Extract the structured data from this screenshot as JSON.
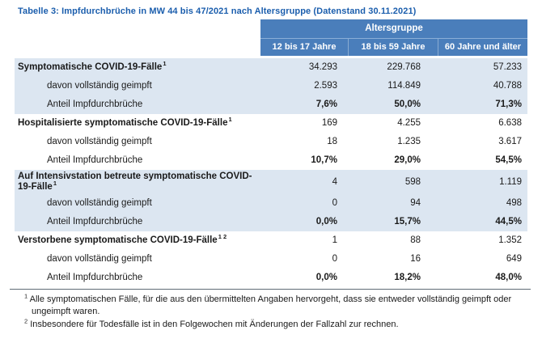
{
  "title": "Tabelle 3: Impfdurchbrüche in MW 44 bis 47/2021 nach Altersgruppe (Datenstand 30.11.2021)",
  "table": {
    "header": {
      "group_label": "Altersgruppe",
      "columns": [
        "12 bis 17 Jahre",
        "18 bis 59 Jahre",
        "60 Jahre und älter"
      ]
    },
    "groups": [
      {
        "label": "Symptomatische COVID-19-Fälle",
        "sup": "1",
        "cases": [
          "34.293",
          "229.768",
          "57.233"
        ],
        "vaccinated_label": "davon vollständig geimpft",
        "vaccinated": [
          "2.593",
          "114.849",
          "40.788"
        ],
        "share_label": "Anteil Impfdurchbrüche",
        "share": [
          "7,6%",
          "50,0%",
          "71,3%"
        ]
      },
      {
        "label": "Hospitalisierte symptomatische COVID-19-Fälle",
        "sup": "1",
        "cases": [
          "169",
          "4.255",
          "6.638"
        ],
        "vaccinated_label": "davon vollständig geimpft",
        "vaccinated": [
          "18",
          "1.235",
          "3.617"
        ],
        "share_label": "Anteil Impfdurchbrüche",
        "share": [
          "10,7%",
          "29,0%",
          "54,5%"
        ]
      },
      {
        "label": "Auf Intensivstation betreute symptomatische COVID-19-Fälle",
        "sup": "1",
        "cases": [
          "4",
          "598",
          "1.119"
        ],
        "vaccinated_label": "davon vollständig geimpft",
        "vaccinated": [
          "0",
          "94",
          "498"
        ],
        "share_label": "Anteil Impfdurchbrüche",
        "share": [
          "0,0%",
          "15,7%",
          "44,5%"
        ]
      },
      {
        "label": "Verstorbene symptomatische COVID-19-Fälle",
        "sup": "1 2",
        "cases": [
          "1",
          "88",
          "1.352"
        ],
        "vaccinated_label": "davon vollständig geimpft",
        "vaccinated": [
          "0",
          "16",
          "649"
        ],
        "share_label": "Anteil Impfdurchbrüche",
        "share": [
          "0,0%",
          "18,2%",
          "48,0%"
        ]
      }
    ]
  },
  "footnotes": [
    {
      "marker": "1",
      "text": "Alle symptomatischen Fälle, für die aus den übermittelten Angaben hervorgeht, dass sie entweder vollständig geimpft oder ungeimpft waren."
    },
    {
      "marker": "2",
      "text": "Insbesondere für Todesfälle ist in den Folgewochen mit Änderungen der Fallzahl zur rechnen."
    }
  ],
  "colors": {
    "header_blue": "#4a7ebb",
    "band_light_blue": "#dce6f1",
    "title_blue": "#1b5ead"
  }
}
